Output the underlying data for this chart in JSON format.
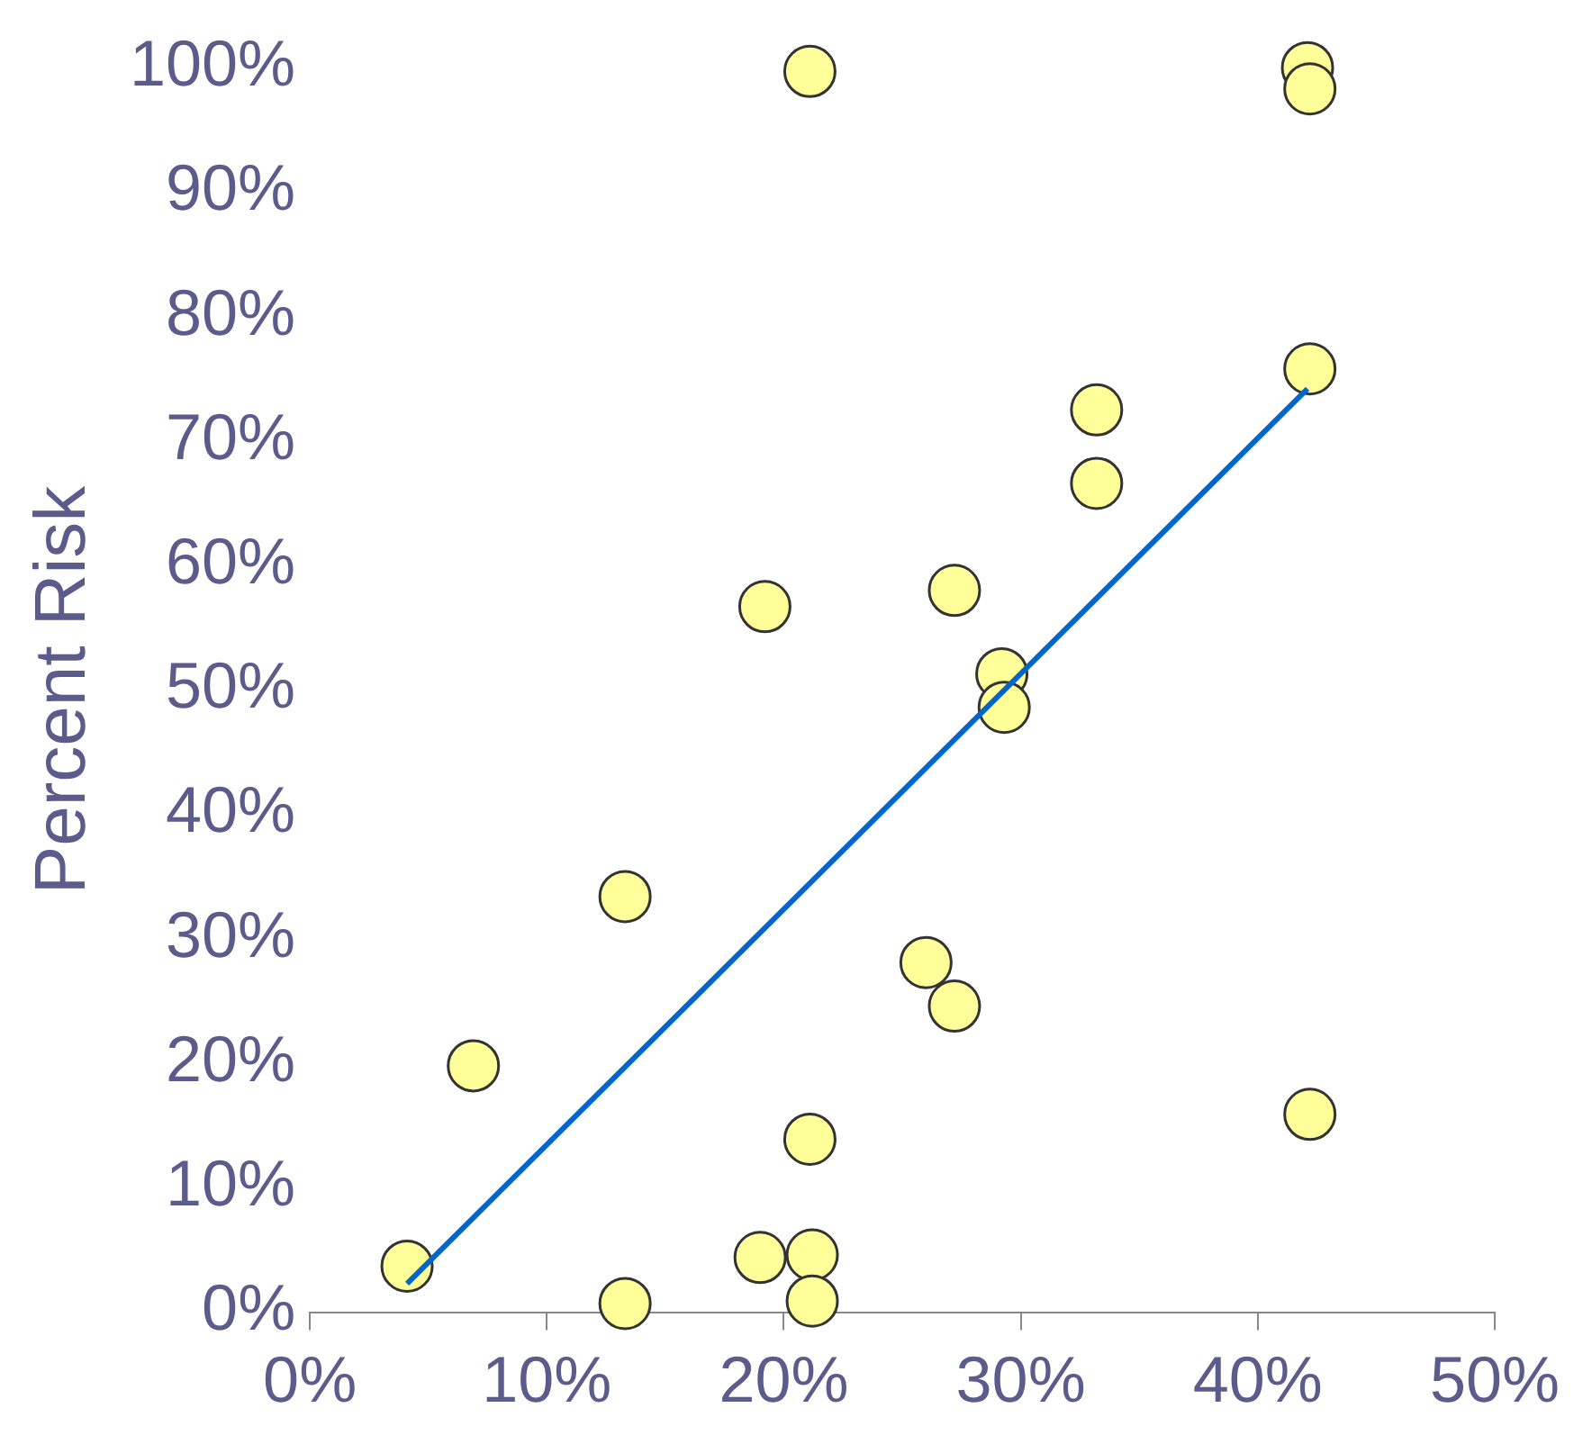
{
  "chart_data": {
    "type": "scatter",
    "ylabel": "Percent Risk",
    "marker": "circle",
    "grid": false,
    "xlim": [
      0,
      50
    ],
    "xticks": [
      {
        "value": 0,
        "label": "0%"
      },
      {
        "value": 10,
        "label": "10%"
      },
      {
        "value": 20,
        "label": "20%"
      },
      {
        "value": 30,
        "label": "30%"
      },
      {
        "value": 40,
        "label": "40%"
      },
      {
        "value": 50,
        "label": "50%"
      }
    ],
    "ylim": [
      0,
      100
    ],
    "yticks": [
      {
        "value": 0,
        "label": "0%"
      },
      {
        "value": 10,
        "label": "10%"
      },
      {
        "value": 20,
        "label": "20%"
      },
      {
        "value": 30,
        "label": "30%"
      },
      {
        "value": 40,
        "label": "40%"
      },
      {
        "value": 50,
        "label": "50%"
      },
      {
        "value": 60,
        "label": "60%"
      },
      {
        "value": 70,
        "label": "70%"
      },
      {
        "value": 80,
        "label": "80%"
      },
      {
        "value": 90,
        "label": "90%"
      },
      {
        "value": 100,
        "label": "100%"
      }
    ],
    "series": [
      {
        "color": "#ffff99",
        "x": [
          4.1,
          6.9,
          13.3,
          13.3,
          19.2,
          19.0,
          21.1,
          21.1,
          21.2,
          21.2,
          26.0,
          27.2,
          27.2,
          29.2,
          29.3,
          33.2,
          33.2,
          42.1,
          42.2,
          42.2,
          42.2
        ],
        "values": [
          3.7,
          19.8,
          33.4,
          0.7,
          56.7,
          4.4,
          99.7,
          13.9,
          4.6,
          0.9,
          28.1,
          24.6,
          58.0,
          51.3,
          48.6,
          72.5,
          66.6,
          100,
          98.3,
          75.8,
          15.9
        ]
      },
      {
        "type": "line",
        "color": "#0066cc",
        "marker": "none",
        "x": [
          4.1,
          42.1
        ],
        "values": [
          2.3,
          74.2
        ]
      }
    ]
  }
}
